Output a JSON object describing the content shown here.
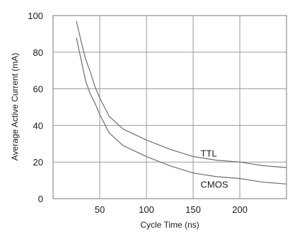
{
  "chart_data": {
    "type": "line",
    "title": "",
    "xlabel": "Cycle Time (ns)",
    "ylabel": "Average Active Current (mA)",
    "xlim": [
      0,
      250
    ],
    "ylim": [
      0,
      100
    ],
    "x_ticks": [
      {
        "value": 50,
        "label": "50"
      },
      {
        "value": 100,
        "label": "100"
      },
      {
        "value": 150,
        "label": "150"
      },
      {
        "value": 200,
        "label": "200"
      }
    ],
    "y_ticks": [
      {
        "value": 0,
        "label": "0"
      },
      {
        "value": 20,
        "label": "20"
      },
      {
        "value": 40,
        "label": "40"
      },
      {
        "value": 60,
        "label": "60"
      },
      {
        "value": 80,
        "label": "80"
      },
      {
        "value": 100,
        "label": "100"
      }
    ],
    "grid": true,
    "series": [
      {
        "name": "TTL",
        "color": "#6e6e6e",
        "label_at": [
          158,
          25
        ],
        "x": [
          25,
          30,
          35,
          40,
          45,
          50,
          60,
          75,
          100,
          125,
          150,
          175,
          200,
          225,
          250
        ],
        "y": [
          97,
          86,
          76,
          69,
          61,
          55,
          45,
          38,
          32,
          27,
          23,
          21,
          20,
          18,
          17
        ]
      },
      {
        "name": "CMOS",
        "color": "#6e6e6e",
        "label_at": [
          158,
          8
        ],
        "x": [
          25,
          30,
          35,
          40,
          45,
          50,
          60,
          75,
          100,
          125,
          150,
          175,
          200,
          225,
          250
        ],
        "y": [
          88,
          76,
          64,
          57,
          52,
          46,
          36,
          29,
          23,
          18,
          14,
          12,
          11,
          9,
          8
        ]
      }
    ]
  }
}
